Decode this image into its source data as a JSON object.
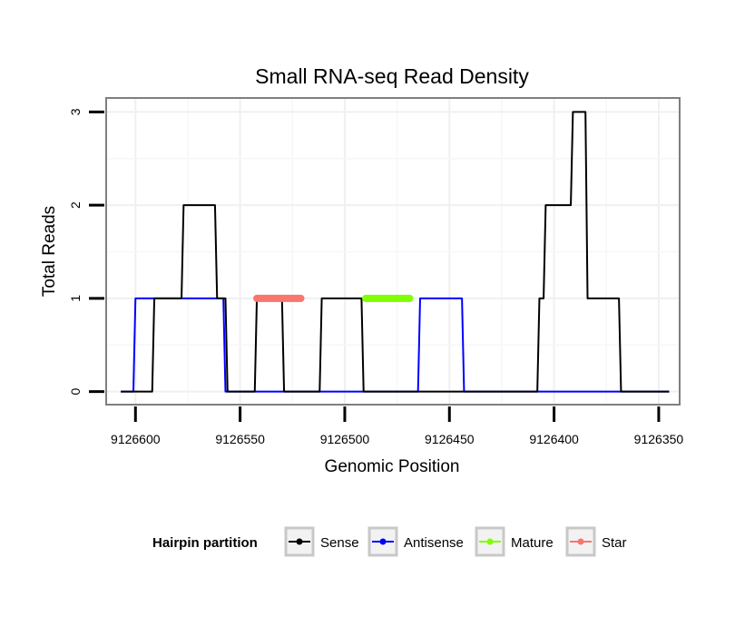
{
  "chart_data": {
    "type": "line",
    "title": "Small RNA-seq Read Density",
    "xlabel": "Genomic Position",
    "ylabel": "Total Reads",
    "xlim": [
      9126614,
      9126340
    ],
    "ylim": [
      -0.14,
      3.15
    ],
    "x_reversed": true,
    "grid": true,
    "x_ticks": [
      9126600,
      9126550,
      9126500,
      9126450,
      9126400,
      9126350
    ],
    "x_tick_labels": [
      "9126600",
      "9126550",
      "9126500",
      "9126450",
      "9126400",
      "9126350"
    ],
    "y_ticks": [
      0,
      1,
      2,
      3
    ],
    "y_tick_labels": [
      "0",
      "1",
      "2",
      "3"
    ],
    "legend": {
      "title": "Hairpin partition",
      "position": "bottom",
      "entries": [
        "Sense",
        "Antisense",
        "Mature",
        "Star"
      ]
    },
    "series": [
      {
        "name": "Sense",
        "color": "#000000",
        "x": [
          9126607,
          9126592,
          9126591,
          9126578,
          9126577,
          9126562,
          9126561,
          9126557,
          9126556,
          9126543,
          9126542,
          9126530,
          9126529,
          9126512,
          9126511,
          9126492,
          9126491,
          9126458,
          9126457,
          9126436,
          9126435,
          9126408,
          9126407,
          9126405,
          9126404,
          9126392,
          9126391,
          9126385,
          9126384,
          9126369,
          9126368,
          9126345
        ],
        "y": [
          0,
          0,
          1,
          1,
          2,
          2,
          1,
          1,
          0,
          0,
          1,
          1,
          0,
          0,
          1,
          1,
          0,
          0,
          0,
          0,
          0,
          0,
          1,
          1,
          2,
          2,
          3,
          3,
          1,
          1,
          0,
          0
        ]
      },
      {
        "name": "Antisense",
        "color": "#0000ff",
        "x": [
          9126607,
          9126601,
          9126600,
          9126558,
          9126557,
          9126465,
          9126464,
          9126444,
          9126443,
          9126345
        ],
        "y": [
          0,
          0,
          1,
          1,
          0,
          0,
          1,
          1,
          0,
          0
        ]
      },
      {
        "name": "Mature",
        "color": "#7fff00",
        "x": [
          9126490,
          9126469
        ],
        "y": [
          1,
          1
        ]
      },
      {
        "name": "Star",
        "color": "#f8766d",
        "x": [
          9126542,
          9126521
        ],
        "y": [
          1,
          1
        ]
      }
    ]
  }
}
